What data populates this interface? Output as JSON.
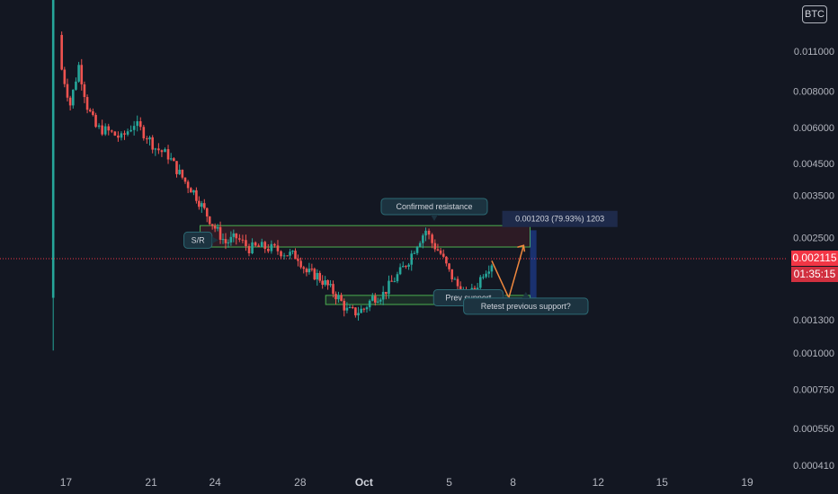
{
  "chart_data": {
    "type": "candlestick",
    "symbol_currency": "BTC",
    "y_scale": "log",
    "ylim": [
      0.00039,
      0.0165
    ],
    "y_ticks": [
      "0.011000",
      "0.008000",
      "0.006000",
      "0.004500",
      "0.003500",
      "0.002500",
      "0.001300",
      "0.001000",
      "0.000750",
      "0.000550",
      "0.000410"
    ],
    "x_ticks": [
      {
        "label": "17",
        "bold": false,
        "day": 17
      },
      {
        "label": "21",
        "bold": false,
        "day": 21
      },
      {
        "label": "24",
        "bold": false,
        "day": 24
      },
      {
        "label": "28",
        "bold": false,
        "day": 28
      },
      {
        "label": "Oct",
        "bold": true,
        "day": 31
      },
      {
        "label": "5",
        "bold": false,
        "day": 35
      },
      {
        "label": "8",
        "bold": false,
        "day": 38
      },
      {
        "label": "12",
        "bold": false,
        "day": 42
      },
      {
        "label": "15",
        "bold": false,
        "day": 45
      },
      {
        "label": "19",
        "bold": false,
        "day": 49
      }
    ],
    "x_axis": {
      "day_start": 13.9,
      "day_end": 50.9
    },
    "current_price": "0.002115",
    "countdown": "01:35:15",
    "colors": {
      "up": "#26a69a",
      "down": "#ef5350",
      "price_line": "#f23645",
      "background": "#131722",
      "zone_red": "#f23645",
      "zone_green": "#4caf50",
      "arrow": "#f0883e"
    },
    "first_candle": {
      "day": 16.4,
      "open": 0.00155,
      "high": 0.0165,
      "low": 0.00102,
      "close": 0.0165
    },
    "close_path": [
      [
        16.6,
        0.0125
      ],
      [
        16.8,
        0.0095
      ],
      [
        17.2,
        0.0072
      ],
      [
        17.6,
        0.0098
      ],
      [
        18.0,
        0.0071
      ],
      [
        18.4,
        0.006
      ],
      [
        19.0,
        0.0058
      ],
      [
        19.6,
        0.0055
      ],
      [
        20.2,
        0.0062
      ],
      [
        20.8,
        0.0056
      ],
      [
        21.2,
        0.0051
      ],
      [
        21.8,
        0.0048
      ],
      [
        22.2,
        0.0043
      ],
      [
        22.6,
        0.0039
      ],
      [
        23.0,
        0.0036
      ],
      [
        23.5,
        0.0031
      ],
      [
        24.0,
        0.0027
      ],
      [
        24.5,
        0.0024
      ],
      [
        25.0,
        0.0025
      ],
      [
        25.6,
        0.0023
      ],
      [
        26.2,
        0.00232
      ],
      [
        26.8,
        0.00228
      ],
      [
        27.4,
        0.0022
      ],
      [
        27.9,
        0.00215
      ],
      [
        28.3,
        0.0019
      ],
      [
        28.8,
        0.00185
      ],
      [
        29.3,
        0.0017
      ],
      [
        29.8,
        0.00155
      ],
      [
        30.2,
        0.0014
      ],
      [
        30.6,
        0.00138
      ],
      [
        31.0,
        0.00142
      ],
      [
        31.4,
        0.00155
      ],
      [
        31.9,
        0.0016
      ],
      [
        32.3,
        0.00175
      ],
      [
        32.7,
        0.0019
      ],
      [
        33.1,
        0.0021
      ],
      [
        33.5,
        0.0024
      ],
      [
        33.9,
        0.00265
      ],
      [
        34.2,
        0.0024
      ],
      [
        34.6,
        0.0022
      ],
      [
        35.0,
        0.0019
      ],
      [
        35.4,
        0.0017
      ],
      [
        35.8,
        0.00155
      ],
      [
        36.2,
        0.00165
      ],
      [
        36.6,
        0.0019
      ],
      [
        37.0,
        0.00205
      ]
    ],
    "price_line_day": 37.0,
    "zones": [
      {
        "kind": "resistance",
        "x0_day": 23.3,
        "x1_day": 38.8,
        "y_top": 0.00275,
        "y_bottom": 0.00232
      },
      {
        "kind": "support",
        "x0_day": 29.2,
        "x1_day": 38.8,
        "y_top": 0.00158,
        "y_bottom": 0.00147
      }
    ],
    "projection_path": [
      [
        37.0,
        0.00208
      ],
      [
        37.8,
        0.00155
      ],
      [
        38.5,
        0.00235
      ]
    ],
    "measure_box": {
      "x0_day": 38.8,
      "x1_day": 39.1,
      "y_top": 0.00265,
      "y_bottom": 0.00147
    },
    "annotations": [
      {
        "label": "S/R",
        "x_day": 23.2,
        "y": 0.00245
      },
      {
        "label": "Confirmed resistance",
        "x_day": 34.3,
        "y": 0.0032
      },
      {
        "label": "Prev support",
        "x_day": 35.9,
        "y": 0.00155
      },
      {
        "label": "Retest previous support?",
        "x_day": 38.6,
        "y": 0.00145
      },
      {
        "label": "0.001203 (79.93%) 1203",
        "x_day": 40.2,
        "y": 0.0029
      }
    ]
  }
}
